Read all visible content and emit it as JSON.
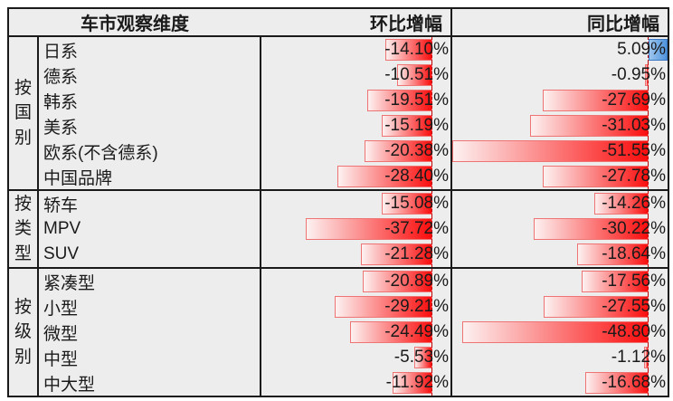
{
  "header": {
    "dimension_label": "车市观察维度",
    "mom_label": "环比增幅",
    "yoy_label": "同比增幅"
  },
  "colors": {
    "negative_bar_start": "#fdf1f1",
    "negative_bar_end": "#fb0d0d",
    "negative_bar_border": "#ee7373",
    "positive_bar_start": "#9cc5ee",
    "positive_bar_end": "#4f93dd",
    "positive_bar_border": "#3a77c2",
    "axis_line": "#c00000",
    "cell_background": "#ededed",
    "border": "#1a1a1a"
  },
  "chart_data": {
    "type": "table",
    "title": "车市观察维度",
    "columns": [
      "车市观察维度",
      "环比增幅",
      "同比增幅"
    ],
    "value_format": "percent, two decimals, data bars (red negative, blue positive)",
    "sections": [
      {
        "group": "按国别",
        "rows": [
          {
            "label": "日系",
            "mom": -14.1,
            "yoy": 5.09
          },
          {
            "label": "德系",
            "mom": -10.51,
            "yoy": -0.95
          },
          {
            "label": "韩系",
            "mom": -19.51,
            "yoy": -27.69
          },
          {
            "label": "美系",
            "mom": -15.19,
            "yoy": -31.03
          },
          {
            "label": "欧系(不含德系)",
            "mom": -20.38,
            "yoy": -51.55
          },
          {
            "label": "中国品牌",
            "mom": -28.4,
            "yoy": -27.78
          }
        ]
      },
      {
        "group": "按类型",
        "rows": [
          {
            "label": "轿车",
            "mom": -15.08,
            "yoy": -14.26
          },
          {
            "label": "MPV",
            "mom": -37.72,
            "yoy": -30.22
          },
          {
            "label": "SUV",
            "mom": -21.28,
            "yoy": -18.64
          }
        ]
      },
      {
        "group": "按级别",
        "rows": [
          {
            "label": "紧凑型",
            "mom": -20.89,
            "yoy": -17.56
          },
          {
            "label": "小型",
            "mom": -29.21,
            "yoy": -27.55
          },
          {
            "label": "微型",
            "mom": -24.49,
            "yoy": -48.8
          },
          {
            "label": "中型",
            "mom": -5.53,
            "yoy": -1.12
          },
          {
            "label": "中大型",
            "mom": -11.92,
            "yoy": -16.68
          }
        ]
      }
    ]
  }
}
